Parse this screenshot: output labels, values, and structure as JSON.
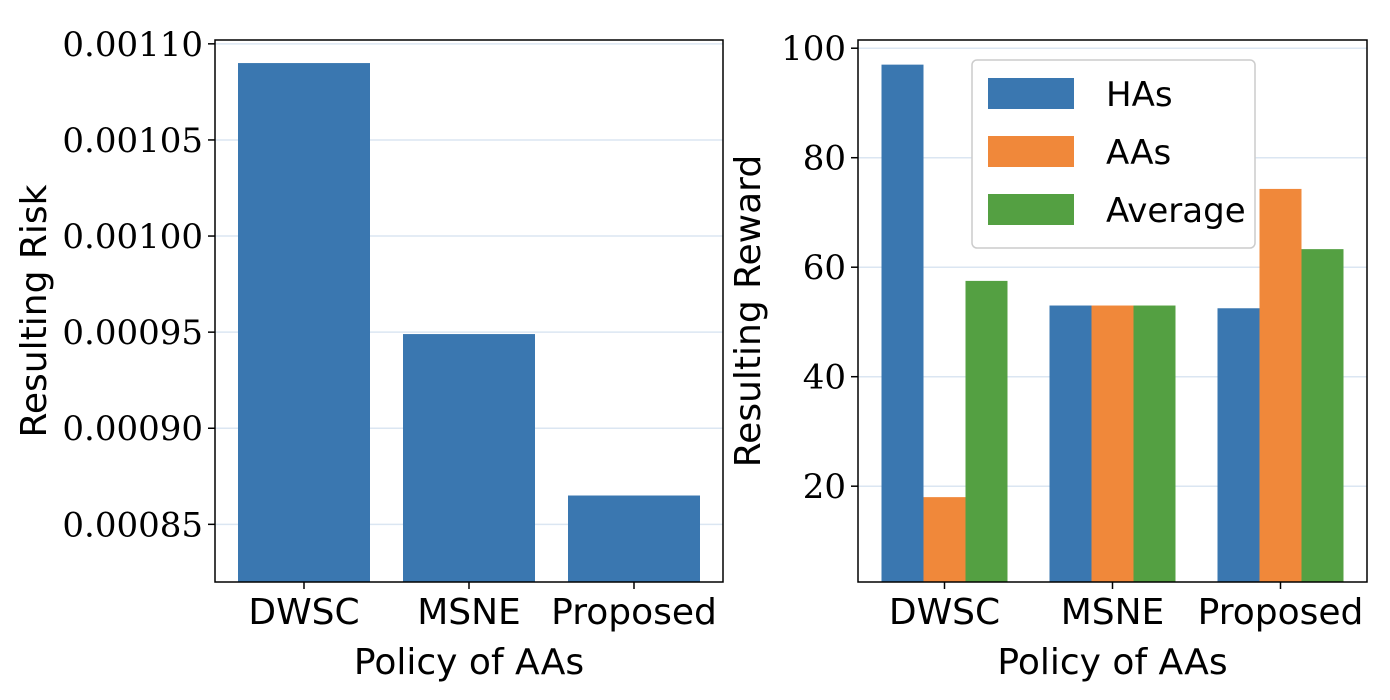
{
  "chart_data": [
    {
      "type": "bar",
      "title": "",
      "xlabel": "Policy of AAs",
      "ylabel": "Resulting Risk",
      "categories": [
        "DWSC",
        "MSNE",
        "Proposed"
      ],
      "values": [
        0.00109,
        0.000949,
        0.000865
      ],
      "ylim": [
        0.00082,
        0.001102
      ],
      "yticks": [
        0.00085,
        0.0009,
        0.00095,
        0.001,
        0.00105,
        0.0011
      ],
      "ytick_labels": [
        "0.00085",
        "0.00090",
        "0.00095",
        "0.00100",
        "0.00105",
        "0.00110"
      ],
      "grid": true,
      "color": "#3a77b0"
    },
    {
      "type": "bar",
      "title": "",
      "xlabel": "Policy of AAs",
      "ylabel": "Resulting Reward",
      "categories": [
        "DWSC",
        "MSNE",
        "Proposed"
      ],
      "series": [
        {
          "name": "HAs",
          "values": [
            97,
            53,
            52.5
          ],
          "color": "#3a77b0"
        },
        {
          "name": "AAs",
          "values": [
            18,
            53,
            74.3
          ],
          "color": "#f0883a"
        },
        {
          "name": "Average",
          "values": [
            57.5,
            53,
            63.3
          ],
          "color": "#54a042"
        }
      ],
      "ylim": [
        2.5,
        101.5
      ],
      "yticks": [
        20,
        40,
        60,
        80,
        100
      ],
      "ytick_labels": [
        "20",
        "40",
        "60",
        "80",
        "100"
      ],
      "grid": true,
      "legend": "top-right"
    }
  ]
}
